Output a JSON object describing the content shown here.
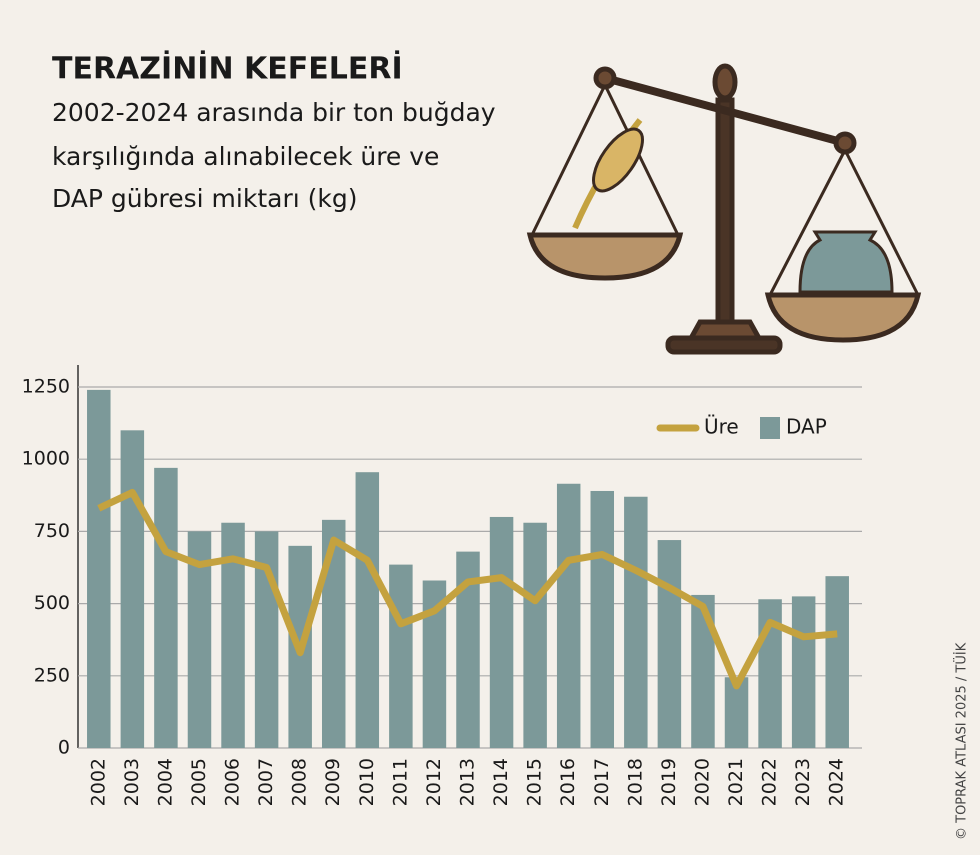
{
  "chart_data": {
    "type": "bar_line",
    "title": "TERAZİNİN KEFELERİ",
    "subtitle": [
      "2002-2024 arasında bir ton buğday",
      "karşılığında alınabilecek üre ve",
      "DAP gübresi miktarı (kg)"
    ],
    "source": "© TOPRAK ATLASI 2025 / TÜİK",
    "categories": [
      "2002",
      "2003",
      "2004",
      "2005",
      "2006",
      "2007",
      "2008",
      "2009",
      "2010",
      "2011",
      "2012",
      "2013",
      "2014",
      "2015",
      "2016",
      "2017",
      "2018",
      "2019",
      "2020",
      "2021",
      "2022",
      "2023",
      "2024"
    ],
    "series": [
      {
        "name": "Üre",
        "type": "line",
        "color": "#c4a23f",
        "values": [
          830,
          885,
          680,
          635,
          655,
          625,
          330,
          720,
          650,
          430,
          475,
          575,
          590,
          510,
          650,
          670,
          615,
          555,
          490,
          215,
          435,
          385,
          395
        ]
      },
      {
        "name": "DAP",
        "type": "bar",
        "color": "#7c9999",
        "values": [
          1240,
          1100,
          970,
          750,
          780,
          750,
          700,
          790,
          955,
          635,
          580,
          680,
          800,
          780,
          915,
          890,
          870,
          720,
          530,
          245,
          515,
          525,
          595
        ]
      }
    ],
    "ylim": [
      0,
      1250
    ],
    "yticks": [
      0,
      250,
      500,
      750,
      1000,
      1250
    ],
    "grid": true,
    "legend": "upper right"
  }
}
